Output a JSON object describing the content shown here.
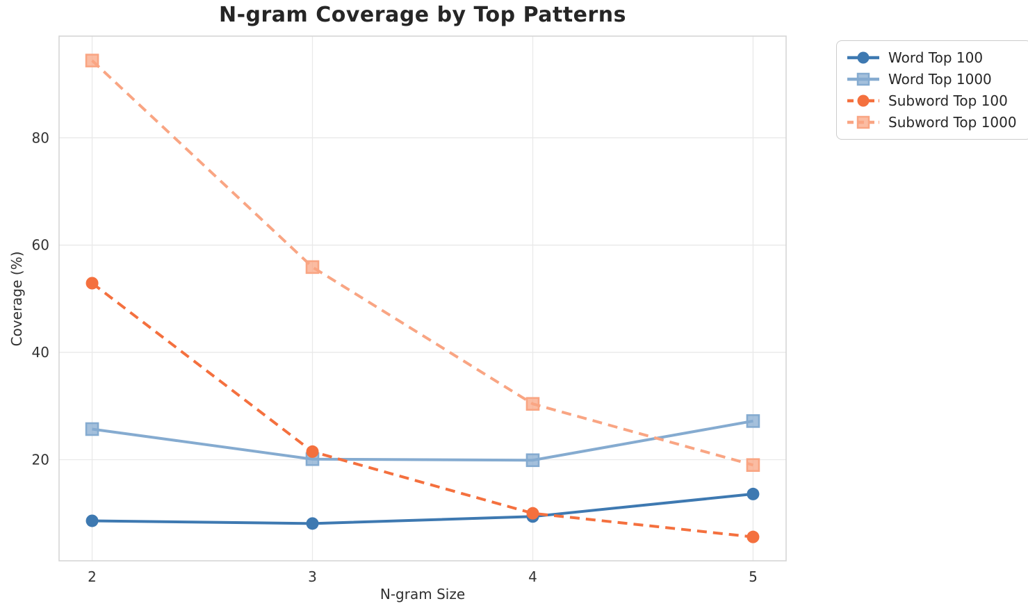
{
  "chart_data": {
    "type": "line",
    "title": "N-gram Coverage by Top Patterns",
    "xlabel": "N-gram Size",
    "ylabel": "Coverage (%)",
    "x": [
      2,
      3,
      4,
      5
    ],
    "series": [
      {
        "name": "Word Top 100",
        "values": [
          8.6,
          8.1,
          9.4,
          13.6
        ],
        "color": "#3e79b1",
        "dash": false,
        "marker": "circle"
      },
      {
        "name": "Word Top 1000",
        "values": [
          25.7,
          20.1,
          19.9,
          27.2
        ],
        "color": "#85abd0",
        "dash": false,
        "marker": "square"
      },
      {
        "name": "Subword Top 100",
        "values": [
          52.9,
          21.5,
          10.0,
          5.6
        ],
        "color": "#f4703e",
        "dash": true,
        "marker": "circle"
      },
      {
        "name": "Subword Top 1000",
        "values": [
          94.4,
          55.9,
          30.4,
          19.0
        ],
        "color": "#f9a583",
        "dash": true,
        "marker": "square"
      }
    ],
    "xticks": [
      "2",
      "3",
      "4",
      "5"
    ],
    "xtick_values": [
      2,
      3,
      4,
      5
    ],
    "yticks": [
      "20",
      "40",
      "60",
      "80"
    ],
    "ytick_values": [
      20,
      40,
      60,
      80
    ],
    "xlim": [
      1.85,
      5.15
    ],
    "ylim": [
      1.15,
      98.95
    ],
    "grid": true,
    "legend_position": "outside-top-right",
    "style": {
      "grid_color": "#e9e9e9",
      "spine_color": "#d5d5d5",
      "background": "#ffffff"
    }
  }
}
